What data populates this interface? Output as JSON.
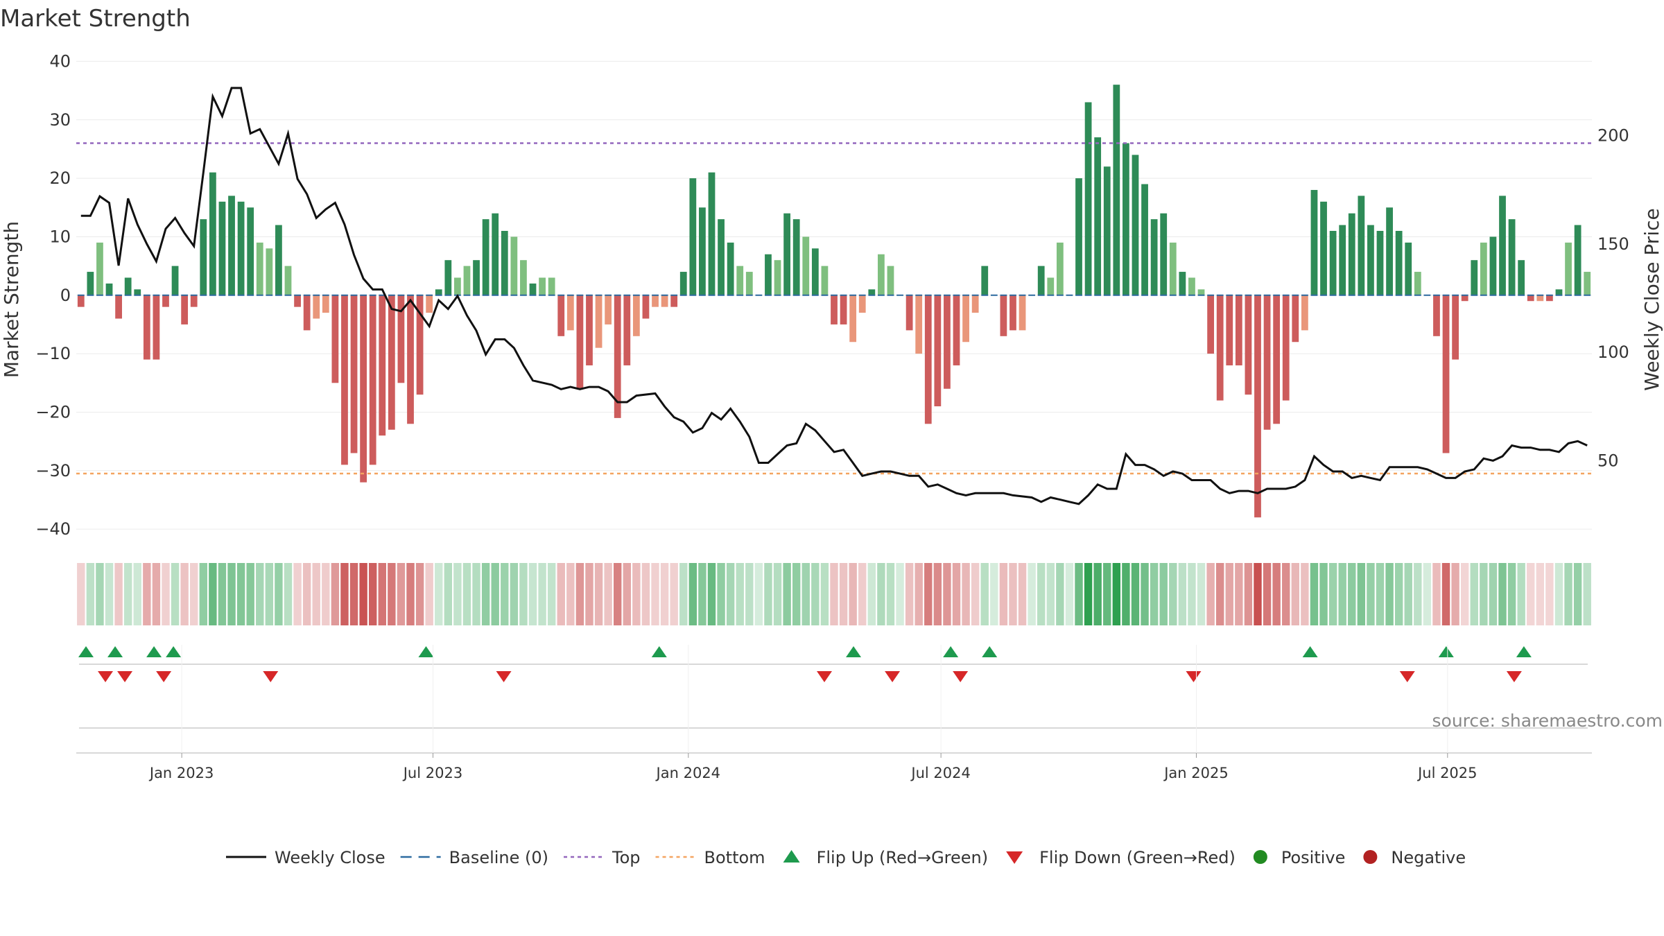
{
  "chart_data": {
    "type": "bar",
    "title": "Market Strength",
    "ylabel": "Market Strength",
    "y2label": "Weekly Close Price",
    "ylim": [
      -42,
      41
    ],
    "yticks": [
      -40,
      -30,
      -20,
      -10,
      0,
      10,
      20,
      30,
      40
    ],
    "y2lim": [
      13,
      237
    ],
    "y2ticks": [
      50,
      100,
      150,
      200
    ],
    "x_start": "2022-10-17",
    "x_end": "2025-10-13",
    "xticks": [
      {
        "date": "2023-01-01",
        "label": "Jan 2023"
      },
      {
        "date": "2023-07-01",
        "label": "Jul 2023"
      },
      {
        "date": "2024-01-01",
        "label": "Jan 2024"
      },
      {
        "date": "2024-07-01",
        "label": "Jul 2024"
      },
      {
        "date": "2025-01-01",
        "label": "Jan 2025"
      },
      {
        "date": "2025-07-01",
        "label": "Jul 2025"
      }
    ],
    "strength": [
      -2,
      4,
      9,
      2,
      -4,
      3,
      1,
      -11,
      -11,
      -2,
      5,
      -5,
      -2,
      13,
      21,
      16,
      17,
      16,
      15,
      9,
      8,
      12,
      5,
      -2,
      -6,
      -4,
      -3,
      -15,
      -29,
      -27,
      -32,
      -29,
      -24,
      -23,
      -15,
      -22,
      -17,
      -3,
      1,
      6,
      3,
      5,
      6,
      13,
      14,
      11,
      10,
      6,
      2,
      3,
      3,
      -7,
      -6,
      -16,
      -12,
      -9,
      -5,
      -21,
      -12,
      -7,
      -4,
      -2,
      -2,
      -2,
      4,
      20,
      15,
      21,
      13,
      9,
      5,
      4,
      0,
      7,
      6,
      14,
      13,
      10,
      8,
      5,
      -5,
      -5,
      -8,
      -3,
      1,
      7,
      5,
      0,
      -6,
      -10,
      -22,
      -19,
      -16,
      -12,
      -8,
      -3,
      5,
      0,
      -7,
      -6,
      -6,
      0,
      5,
      3,
      9,
      0,
      20,
      33,
      27,
      22,
      36,
      26,
      24,
      19,
      13,
      14,
      9,
      4,
      3,
      1,
      -10,
      -18,
      -12,
      -12,
      -17,
      -38,
      -23,
      -22,
      -18,
      -8,
      -6,
      18,
      16,
      11,
      12,
      14,
      17,
      12,
      11,
      15,
      11,
      9,
      4,
      0,
      -7,
      -27,
      -11,
      -1,
      6,
      9,
      10,
      17,
      13,
      6,
      -1,
      -1,
      -1,
      1,
      9,
      12,
      4
    ],
    "close": [
      163,
      163,
      172,
      169,
      140,
      171,
      159,
      150,
      142,
      157,
      162,
      155,
      149,
      183,
      218,
      209,
      222,
      222,
      201,
      203,
      187,
      201,
      180,
      173,
      162,
      166,
      169,
      159,
      145,
      134,
      129,
      129,
      120,
      119,
      124,
      118,
      112,
      124,
      120,
      126,
      117,
      110,
      99,
      106,
      106,
      102,
      94,
      87,
      86,
      85,
      83,
      84,
      83,
      84,
      84,
      82,
      77,
      77,
      80,
      81,
      75,
      70,
      68,
      63,
      65,
      72,
      69,
      74,
      68,
      61,
      49,
      49,
      53,
      57,
      58,
      67,
      64,
      59,
      54,
      55,
      49,
      43,
      44,
      45,
      45,
      44,
      43,
      43,
      38,
      39,
      37,
      35,
      34,
      35,
      35,
      35,
      35,
      34,
      33,
      31,
      33,
      32,
      31,
      30,
      34,
      39,
      37,
      37,
      53,
      48,
      48,
      46,
      43,
      45,
      44,
      41,
      41,
      41,
      37,
      35,
      36,
      36,
      35,
      37,
      37,
      37,
      38,
      41,
      52,
      48,
      45,
      45,
      42,
      43,
      42,
      41,
      47,
      47,
      47,
      46,
      44,
      42,
      42,
      45,
      46,
      51,
      50,
      52,
      57,
      56,
      56,
      55,
      55,
      54,
      58,
      59,
      57
    ]
  },
  "thresholds": {
    "top": 26,
    "bottom": -30.5
  },
  "flip_up_dates": [
    "2022-10-24",
    "2022-11-14",
    "2022-12-12",
    "2022-12-26",
    "2023-06-26",
    "2023-12-11",
    "2024-04-29",
    "2024-07-08",
    "2024-08-05",
    "2025-03-24",
    "2025-06-30",
    "2025-08-25"
  ],
  "flip_down_dates": [
    "2022-11-07",
    "2022-11-21",
    "2022-12-19",
    "2023-03-06",
    "2023-08-21",
    "2024-04-08",
    "2024-05-27",
    "2024-07-15",
    "2024-12-30",
    "2025-06-02",
    "2025-08-18"
  ],
  "legend": [
    {
      "label": "Weekly Close"
    },
    {
      "label": "Baseline (0)"
    },
    {
      "label": "Top"
    },
    {
      "label": "Bottom"
    },
    {
      "label": "Flip Up (Red→Green)"
    },
    {
      "label": "Flip Down (Green→Red)"
    },
    {
      "label": "Positive"
    },
    {
      "label": "Negative"
    }
  ],
  "source": "source: sharemaestro.com",
  "colors": {
    "pos_strong": "#2e8b57",
    "pos_light": "#7fbf7f",
    "neg_strong": "#cd5c5c",
    "neg_light": "#e9967a",
    "close_line": "#111111",
    "baseline": "#2c6aa0",
    "top_line": "#9467bd",
    "bottom_line": "#f4a460",
    "flip_up": "#1e9a4e",
    "flip_down": "#d62728",
    "positive_dot": "#228b22",
    "negative_dot": "#b22222"
  }
}
